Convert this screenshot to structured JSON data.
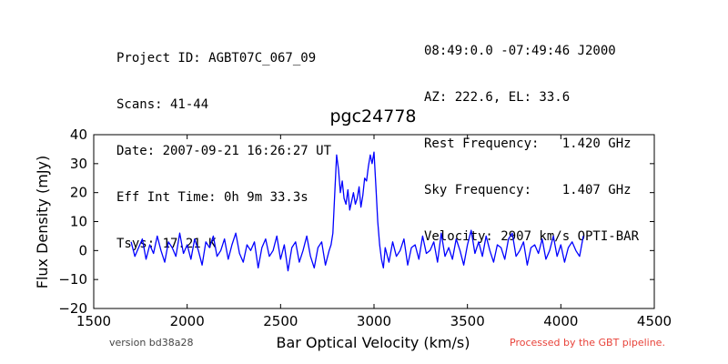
{
  "header": {
    "left": [
      "Project ID: AGBT07C_067_09",
      "Scans: 41-44",
      "Date: 2007-09-21 16:26:27 UT",
      "Eff Int Time: 0h 9m 33.3s",
      "Tsys: 17.21 K"
    ],
    "right": [
      "08:49:0.0 -07:49:46 J2000",
      "AZ: 222.6, EL: 33.6",
      "Rest Frequency:   1.420 GHz",
      "Sky Frequency:    1.407 GHz",
      "Velocity: 2907 km/s OPTI-BAR"
    ]
  },
  "footer": {
    "version": "version bd38a28",
    "pipeline": "Processed by the GBT pipeline."
  },
  "colors": {
    "series": "#0000ff",
    "pipeline": "#e8433a"
  },
  "chart_data": {
    "type": "line",
    "title": "pgc24778",
    "xlabel": "Bar Optical Velocity (km/s)",
    "ylabel": "Flux Density (mJy)",
    "xlim": [
      1500,
      4500
    ],
    "ylim": [
      -20,
      40
    ],
    "xticks": [
      "1500",
      "2000",
      "2500",
      "3000",
      "3500",
      "4000",
      "4500"
    ],
    "yticks": [
      "−20",
      "−10",
      "0",
      "10",
      "20",
      "30",
      "40"
    ],
    "grid": false,
    "series": [
      {
        "x": [
          1700,
          1720,
          1740,
          1760,
          1780,
          1800,
          1820,
          1840,
          1860,
          1880,
          1900,
          1920,
          1940,
          1960,
          1980,
          2000,
          2020,
          2040,
          2060,
          2080,
          2100,
          2120,
          2140,
          2160,
          2180,
          2200,
          2220,
          2240,
          2260,
          2280,
          2300,
          2320,
          2340,
          2360,
          2380,
          2400,
          2420,
          2440,
          2460,
          2480,
          2500,
          2520,
          2540,
          2560,
          2580,
          2600,
          2620,
          2640,
          2660,
          2680,
          2700,
          2720,
          2740,
          2760,
          2770,
          2780,
          2790,
          2800,
          2810,
          2820,
          2830,
          2840,
          2850,
          2860,
          2870,
          2880,
          2890,
          2900,
          2910,
          2920,
          2930,
          2940,
          2950,
          2960,
          2970,
          2980,
          2990,
          3000,
          3010,
          3020,
          3030,
          3040,
          3050,
          3060,
          3080,
          3100,
          3120,
          3140,
          3160,
          3180,
          3200,
          3220,
          3240,
          3260,
          3280,
          3300,
          3320,
          3340,
          3360,
          3380,
          3400,
          3420,
          3440,
          3460,
          3480,
          3500,
          3520,
          3540,
          3560,
          3580,
          3600,
          3620,
          3640,
          3660,
          3680,
          3700,
          3720,
          3740,
          3760,
          3780,
          3800,
          3820,
          3840,
          3860,
          3880,
          3900,
          3920,
          3940,
          3960,
          3980,
          4000,
          4020,
          4040,
          4060,
          4080,
          4100,
          4120
        ],
        "values": [
          3,
          -2,
          1,
          4,
          -3,
          2,
          -1,
          5,
          0,
          -4,
          3,
          1,
          -2,
          6,
          -1,
          2,
          -3,
          4,
          0,
          -5,
          3,
          1,
          5,
          -2,
          0,
          4,
          -3,
          2,
          6,
          -1,
          -4,
          2,
          0,
          3,
          -6,
          1,
          4,
          -2,
          0,
          5,
          -3,
          2,
          -7,
          1,
          3,
          -4,
          0,
          5,
          -2,
          -6,
          1,
          3,
          -5,
          0,
          2,
          6,
          20,
          33,
          28,
          20,
          24,
          18,
          16,
          21,
          14,
          17,
          20,
          16,
          18,
          22,
          15,
          19,
          25,
          24,
          29,
          33,
          30,
          34,
          22,
          10,
          2,
          -3,
          -6,
          1,
          -4,
          3,
          -2,
          0,
          4,
          -5,
          1,
          2,
          -3,
          5,
          -1,
          0,
          3,
          -4,
          6,
          -2,
          1,
          -3,
          4,
          0,
          -5,
          2,
          7,
          -1,
          3,
          -2,
          5,
          0,
          -4,
          2,
          1,
          -3,
          4,
          6,
          -2,
          0,
          3,
          -5,
          1,
          2,
          -1,
          4,
          -3,
          0,
          5,
          -2,
          2,
          -4,
          1,
          3,
          0,
          -2,
          5
        ]
      }
    ]
  }
}
